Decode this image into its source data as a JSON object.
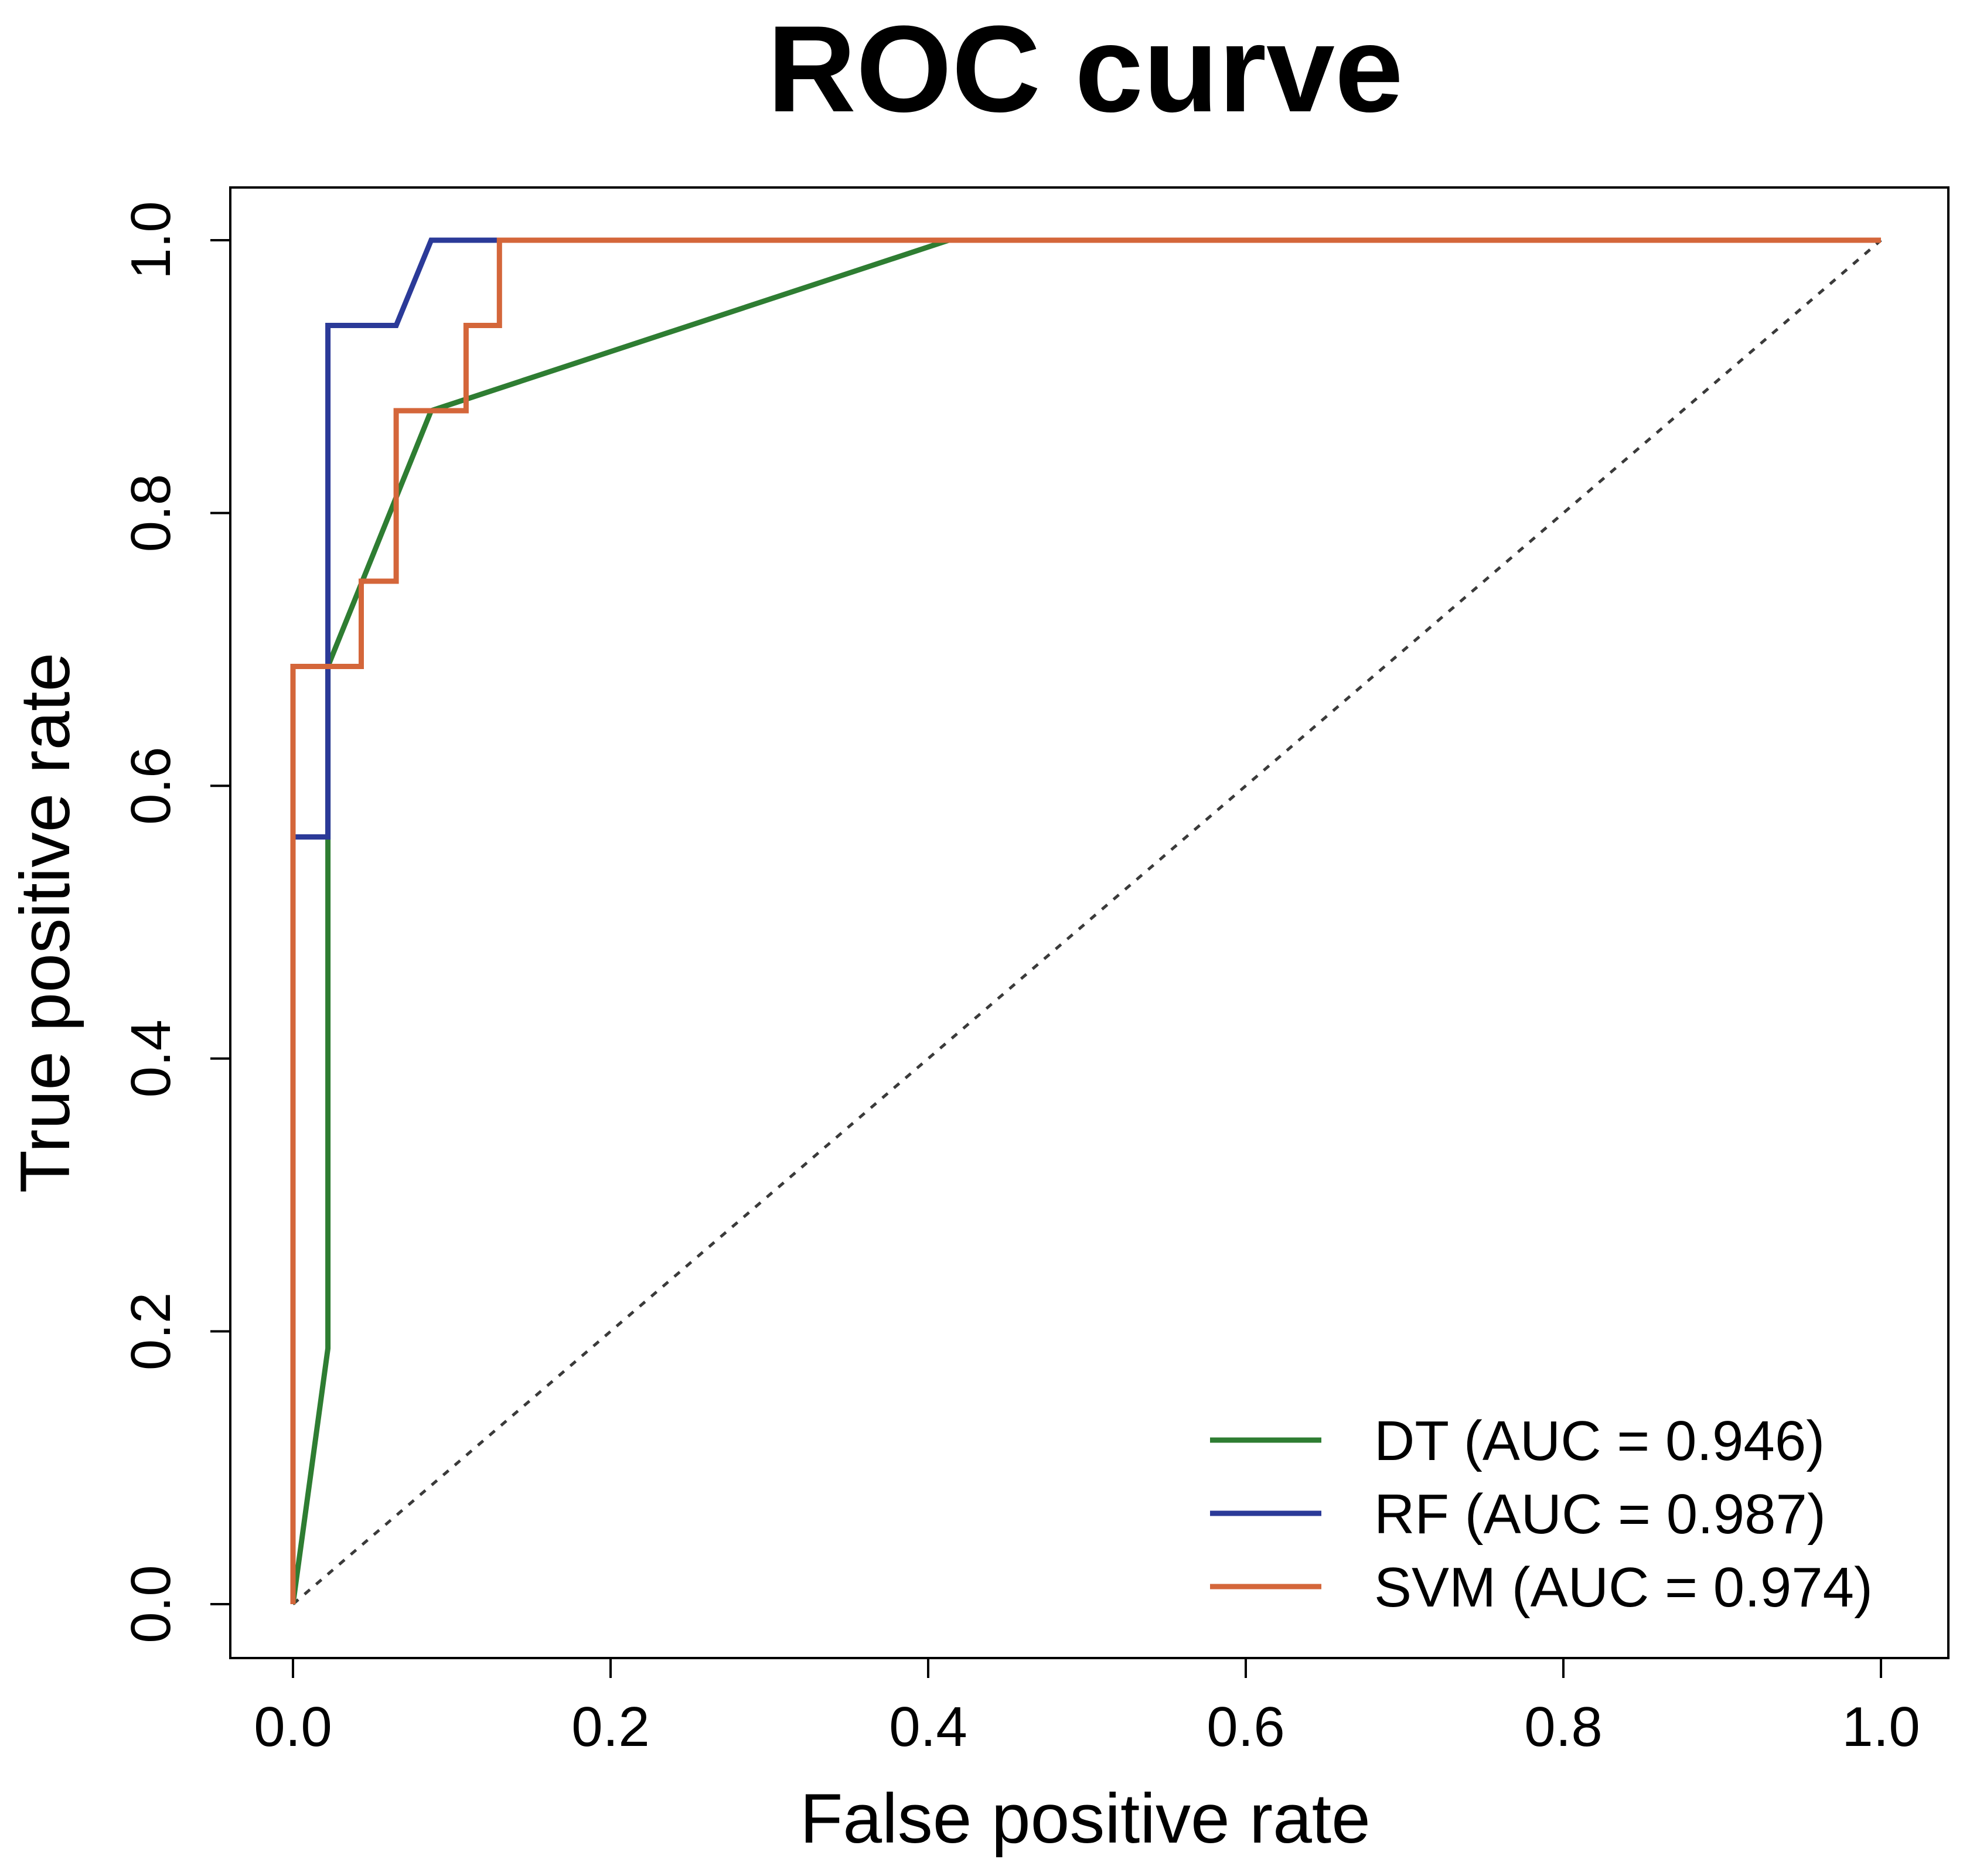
{
  "chart_data": {
    "type": "line",
    "title": "ROC curve",
    "xlabel": "False positive rate",
    "ylabel": "True positive rate",
    "xlim": [
      0,
      1
    ],
    "ylim": [
      0,
      1
    ],
    "xticks": [
      0.0,
      0.2,
      0.4,
      0.6,
      0.8,
      1.0
    ],
    "xtick_labels": [
      "0.0",
      "0.2",
      "0.4",
      "0.6",
      "0.8",
      "1.0"
    ],
    "yticks": [
      0.0,
      0.2,
      0.4,
      0.6,
      0.8,
      1.0
    ],
    "ytick_labels": [
      "0.0",
      "0.2",
      "0.4",
      "0.6",
      "0.8",
      "1.0"
    ],
    "grid": false,
    "legend_position": "bottom-right",
    "reference_line": {
      "name": "chance",
      "style": "dotted",
      "color": "#3a3a3a",
      "x": [
        0,
        1
      ],
      "y": [
        0,
        1
      ]
    },
    "series": [
      {
        "name": "DT",
        "legend_label": "DT (AUC = 0.946)",
        "auc": 0.946,
        "color": "#2e7d32",
        "x": [
          0.0,
          0.022,
          0.022,
          0.087,
          0.413,
          1.0
        ],
        "y": [
          0.0,
          0.1875,
          0.6875,
          0.875,
          1.0,
          1.0
        ]
      },
      {
        "name": "RF",
        "legend_label": "RF (AUC = 0.987)",
        "auc": 0.987,
        "color": "#2b3a98",
        "x": [
          0.0,
          0.0,
          0.022,
          0.022,
          0.065,
          0.087,
          0.13,
          1.0
        ],
        "y": [
          0.0,
          0.5625,
          0.5625,
          0.9375,
          0.9375,
          1.0,
          1.0,
          1.0
        ]
      },
      {
        "name": "SVM",
        "legend_label": "SVM (AUC = 0.974)",
        "auc": 0.974,
        "color": "#d4663a",
        "x": [
          0.0,
          0.0,
          0.0,
          0.0,
          0.043,
          0.043,
          0.065,
          0.065,
          0.109,
          0.109,
          0.13,
          0.13,
          1.0
        ],
        "y": [
          0.0,
          0.5625,
          0.5625,
          0.6875,
          0.6875,
          0.75,
          0.75,
          0.875,
          0.875,
          0.9375,
          0.9375,
          1.0,
          1.0
        ]
      }
    ]
  }
}
